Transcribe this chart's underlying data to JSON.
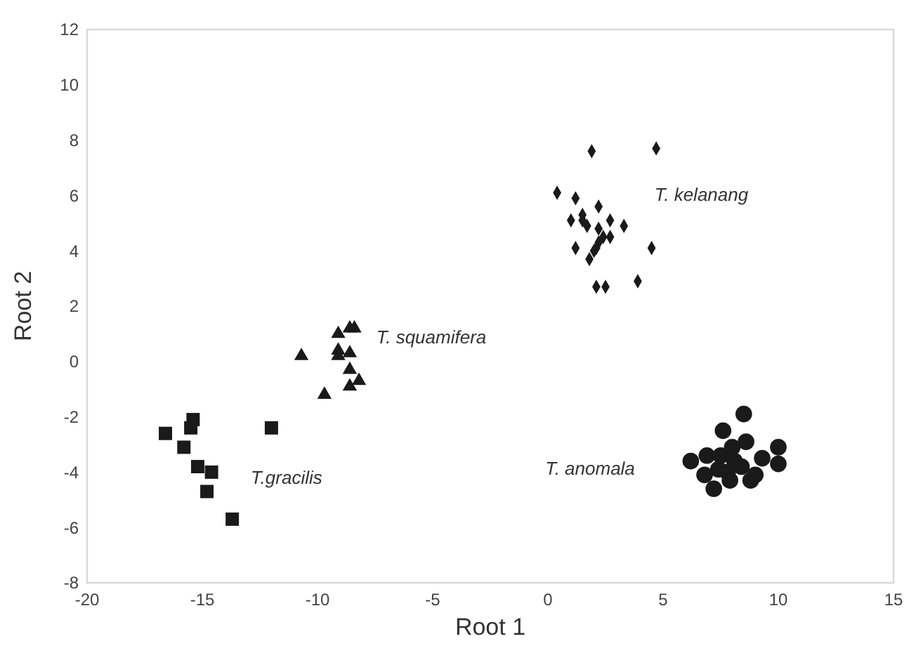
{
  "chart_data": {
    "type": "scatter",
    "xlabel": "Root 1",
    "ylabel": "Root 2",
    "xlim": [
      -20,
      15
    ],
    "xticks": [
      -20,
      -15,
      -10,
      -5,
      0,
      5,
      10,
      15
    ],
    "ylim": [
      -8,
      12
    ],
    "yticks": [
      -8,
      -6,
      -4,
      -2,
      0,
      2,
      4,
      6,
      8,
      10,
      12
    ],
    "grid": false,
    "series": [
      {
        "name": "T. kelanang",
        "color": "#1a1a1a",
        "marker": "diamond",
        "x": [
          1.9,
          4.7,
          0.4,
          1.2,
          2.2,
          1.5,
          1.0,
          1.5,
          1.7,
          2.7,
          3.3,
          2.2,
          2.4,
          2.7,
          2.2,
          2.1,
          1.2,
          2.0,
          4.5,
          1.8,
          2.1,
          2.5,
          3.9
        ],
        "values": [
          7.6,
          7.7,
          6.1,
          5.9,
          5.6,
          5.3,
          5.1,
          5.1,
          4.9,
          5.1,
          4.9,
          4.8,
          4.5,
          4.5,
          4.3,
          4.1,
          4.1,
          4.0,
          4.1,
          3.7,
          2.7,
          2.7,
          2.9
        ]
      },
      {
        "name": "T. squamifera",
        "color": "#1a1a1a",
        "marker": "triangle",
        "x": [
          -9.1,
          -8.6,
          -8.4,
          -10.7,
          -9.1,
          -9.1,
          -8.6,
          -8.6,
          -8.6,
          -8.2,
          -9.7
        ],
        "values": [
          1.0,
          1.2,
          1.2,
          0.2,
          0.4,
          0.2,
          0.3,
          -0.3,
          -0.9,
          -0.7,
          -1.2
        ]
      },
      {
        "name": "T.gracilis",
        "color": "#1a1a1a",
        "marker": "square",
        "x": [
          -15.4,
          -15.5,
          -16.6,
          -15.8,
          -15.2,
          -14.6,
          -14.8,
          -13.7,
          -12.0
        ],
        "values": [
          -2.1,
          -2.4,
          -2.6,
          -3.1,
          -3.8,
          -4.0,
          -4.7,
          -5.7,
          -2.4
        ]
      },
      {
        "name": "T. anomala",
        "color": "#1a1a1a",
        "marker": "circle",
        "x": [
          8.5,
          7.6,
          8.6,
          10.0,
          6.2,
          6.9,
          7.5,
          8.0,
          8.1,
          9.3,
          10.0,
          6.8,
          7.4,
          7.8,
          8.4,
          9.0,
          8.8,
          7.2,
          7.9
        ],
        "values": [
          -1.9,
          -2.5,
          -2.9,
          -3.1,
          -3.6,
          -3.4,
          -3.4,
          -3.1,
          -3.6,
          -3.5,
          -3.7,
          -4.1,
          -3.9,
          -4.0,
          -3.8,
          -4.1,
          -4.3,
          -4.6,
          -4.3
        ]
      }
    ]
  }
}
